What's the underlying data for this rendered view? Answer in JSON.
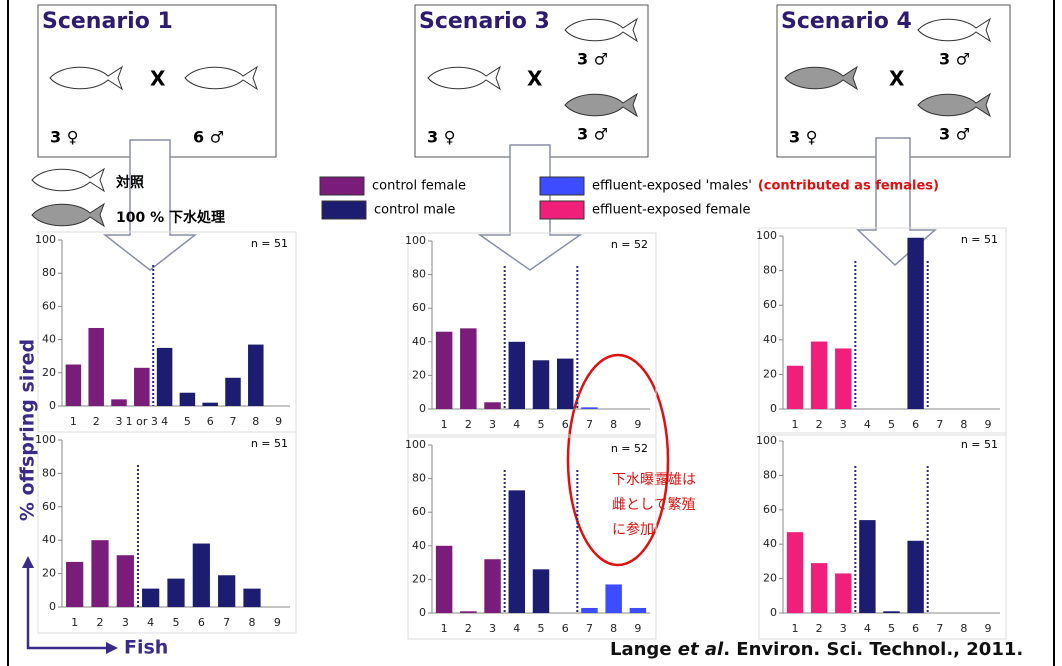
{
  "chart_data": [
    {
      "type": "bar",
      "note": "n = 51",
      "categories": [
        "1",
        "2",
        "3",
        "1 or 3",
        "4",
        "5",
        "6",
        "7",
        "8",
        "9"
      ],
      "values": [
        25,
        47,
        4,
        23,
        35,
        8,
        2,
        17,
        37,
        0
      ],
      "colors": [
        "#7a1c7a",
        "#7a1c7a",
        "#7a1c7a",
        "#7a1c7a",
        "#1c1c70",
        "#1c1c70",
        "#1c1c70",
        "#1c1c70",
        "#1c1c70",
        "#1c1c70"
      ],
      "ylim": [
        0,
        100
      ],
      "yticks": [
        0,
        20,
        40,
        60,
        80,
        100
      ]
    },
    {
      "type": "bar",
      "note": "n = 51",
      "categories": [
        "1",
        "2",
        "3",
        "4",
        "5",
        "6",
        "7",
        "8",
        "9"
      ],
      "values": [
        27,
        40,
        31,
        11,
        17,
        38,
        19,
        11,
        0
      ],
      "colors": [
        "#7a1c7a",
        "#7a1c7a",
        "#7a1c7a",
        "#1c1c70",
        "#1c1c70",
        "#1c1c70",
        "#1c1c70",
        "#1c1c70",
        "#1c1c70"
      ],
      "ylim": [
        0,
        100
      ],
      "yticks": [
        0,
        20,
        40,
        60,
        80,
        100
      ]
    },
    {
      "type": "bar",
      "note": "n = 52",
      "categories": [
        "1",
        "2",
        "3",
        "4",
        "5",
        "6",
        "7",
        "8",
        "9"
      ],
      "values": [
        46,
        48,
        4,
        40,
        29,
        30,
        1,
        0,
        0
      ],
      "colors": [
        "#7a1c7a",
        "#7a1c7a",
        "#7a1c7a",
        "#1c1c70",
        "#1c1c70",
        "#1c1c70",
        "#3d4cff",
        "#3d4cff",
        "#3d4cff"
      ],
      "ylim": [
        0,
        100
      ],
      "yticks": [
        0,
        20,
        40,
        60,
        80,
        100
      ]
    },
    {
      "type": "bar",
      "note": "n = 52",
      "categories": [
        "1",
        "2",
        "3",
        "4",
        "5",
        "6",
        "7",
        "8",
        "9"
      ],
      "values": [
        40,
        1,
        32,
        73,
        26,
        0,
        3,
        17,
        3
      ],
      "colors": [
        "#7a1c7a",
        "#7a1c7a",
        "#7a1c7a",
        "#1c1c70",
        "#1c1c70",
        "#1c1c70",
        "#3d4cff",
        "#3d4cff",
        "#3d4cff"
      ],
      "ylim": [
        0,
        100
      ],
      "yticks": [
        0,
        20,
        40,
        60,
        80,
        100
      ]
    },
    {
      "type": "bar",
      "note": "n = 51",
      "categories": [
        "1",
        "2",
        "3",
        "4",
        "5",
        "6",
        "7",
        "8",
        "9"
      ],
      "values": [
        25,
        39,
        35,
        0,
        0,
        99,
        0,
        0,
        0
      ],
      "colors": [
        "#f0207a",
        "#f0207a",
        "#f0207a",
        "#1c1c70",
        "#1c1c70",
        "#1c1c70",
        "#3d4cff",
        "#3d4cff",
        "#3d4cff"
      ],
      "ylim": [
        0,
        100
      ],
      "yticks": [
        0,
        20,
        40,
        60,
        80,
        100
      ]
    },
    {
      "type": "bar",
      "note": "n = 51",
      "categories": [
        "1",
        "2",
        "3",
        "4",
        "5",
        "6",
        "7",
        "8",
        "9"
      ],
      "values": [
        47,
        29,
        23,
        54,
        1,
        42,
        0,
        0,
        0
      ],
      "colors": [
        "#f0207a",
        "#f0207a",
        "#f0207a",
        "#1c1c70",
        "#1c1c70",
        "#1c1c70",
        "#3d4cff",
        "#3d4cff",
        "#3d4cff"
      ],
      "ylim": [
        0,
        100
      ],
      "yticks": [
        0,
        20,
        40,
        60,
        80,
        100
      ]
    }
  ],
  "slide": {
    "scenarios": [
      {
        "title": "Scenario 1",
        "cross": "X",
        "female": "3 ♀",
        "males": [
          "6 ♂"
        ]
      },
      {
        "title": "Scenario 3",
        "cross": "X",
        "female": "3 ♀",
        "males": [
          "3 ♂",
          "3 ♂"
        ]
      },
      {
        "title": "Scenario 4",
        "cross": "X",
        "female": "3 ♀",
        "males": [
          "3 ♂",
          "3 ♂"
        ]
      }
    ],
    "key": {
      "control": "対照",
      "treated": "100 % 下水処理"
    },
    "legend": [
      {
        "label": "control female",
        "color": "#7a1c7a"
      },
      {
        "label": "control male",
        "color": "#1c1c70"
      },
      {
        "label": "effluent-exposed 'males'",
        "note": "(contributed as females)",
        "color": "#3d4cff"
      },
      {
        "label": "effluent-exposed female",
        "color": "#f0207a"
      }
    ],
    "annotation": [
      "下水曝露雄は",
      "雌として繁殖",
      "に参加"
    ],
    "y_label": "% offspring sired",
    "x_label": "Fish",
    "citation": {
      "author": "Lange ",
      "etal": "et al",
      "rest": ". Environ. Sci. Technol., 2011."
    }
  }
}
